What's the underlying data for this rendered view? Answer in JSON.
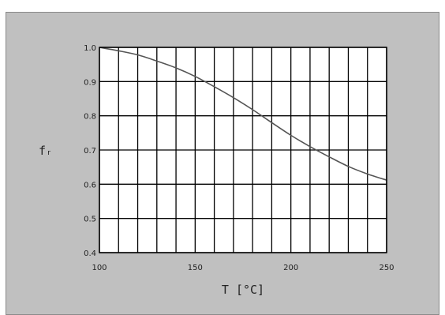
{
  "chart_data": {
    "type": "line",
    "title": "",
    "xlabel": "T  [°C]",
    "ylabel": "fᵣ",
    "xlim": [
      100,
      250
    ],
    "ylim": [
      0.4,
      1.0
    ],
    "x_ticks": [
      {
        "value": 100,
        "label": "100"
      },
      {
        "value": 150,
        "label": "150"
      },
      {
        "value": 200,
        "label": "200"
      },
      {
        "value": 250,
        "label": "250"
      }
    ],
    "y_ticks": [
      {
        "value": 0.4,
        "label": "0.4"
      },
      {
        "value": 0.5,
        "label": "0.5"
      },
      {
        "value": 0.6,
        "label": "0.6"
      },
      {
        "value": 0.7,
        "label": "0.7"
      },
      {
        "value": 0.8,
        "label": "0.8"
      },
      {
        "value": 0.9,
        "label": "0.9"
      },
      {
        "value": 1.0,
        "label": "1.0"
      }
    ],
    "grid": true,
    "x_grid_step": 10,
    "series": [
      {
        "x": [
          100,
          110,
          120,
          130,
          140,
          150,
          160,
          170,
          180,
          190,
          200,
          210,
          220,
          230,
          240,
          250
        ],
        "values": [
          1.0,
          0.99,
          0.978,
          0.96,
          0.94,
          0.915,
          0.885,
          0.853,
          0.818,
          0.78,
          0.743,
          0.71,
          0.68,
          0.652,
          0.63,
          0.612
        ]
      }
    ],
    "colors": {
      "background": "#c0c0c0",
      "plot_area": "#ffffff",
      "grid": "#000000",
      "line": "#555555"
    }
  }
}
